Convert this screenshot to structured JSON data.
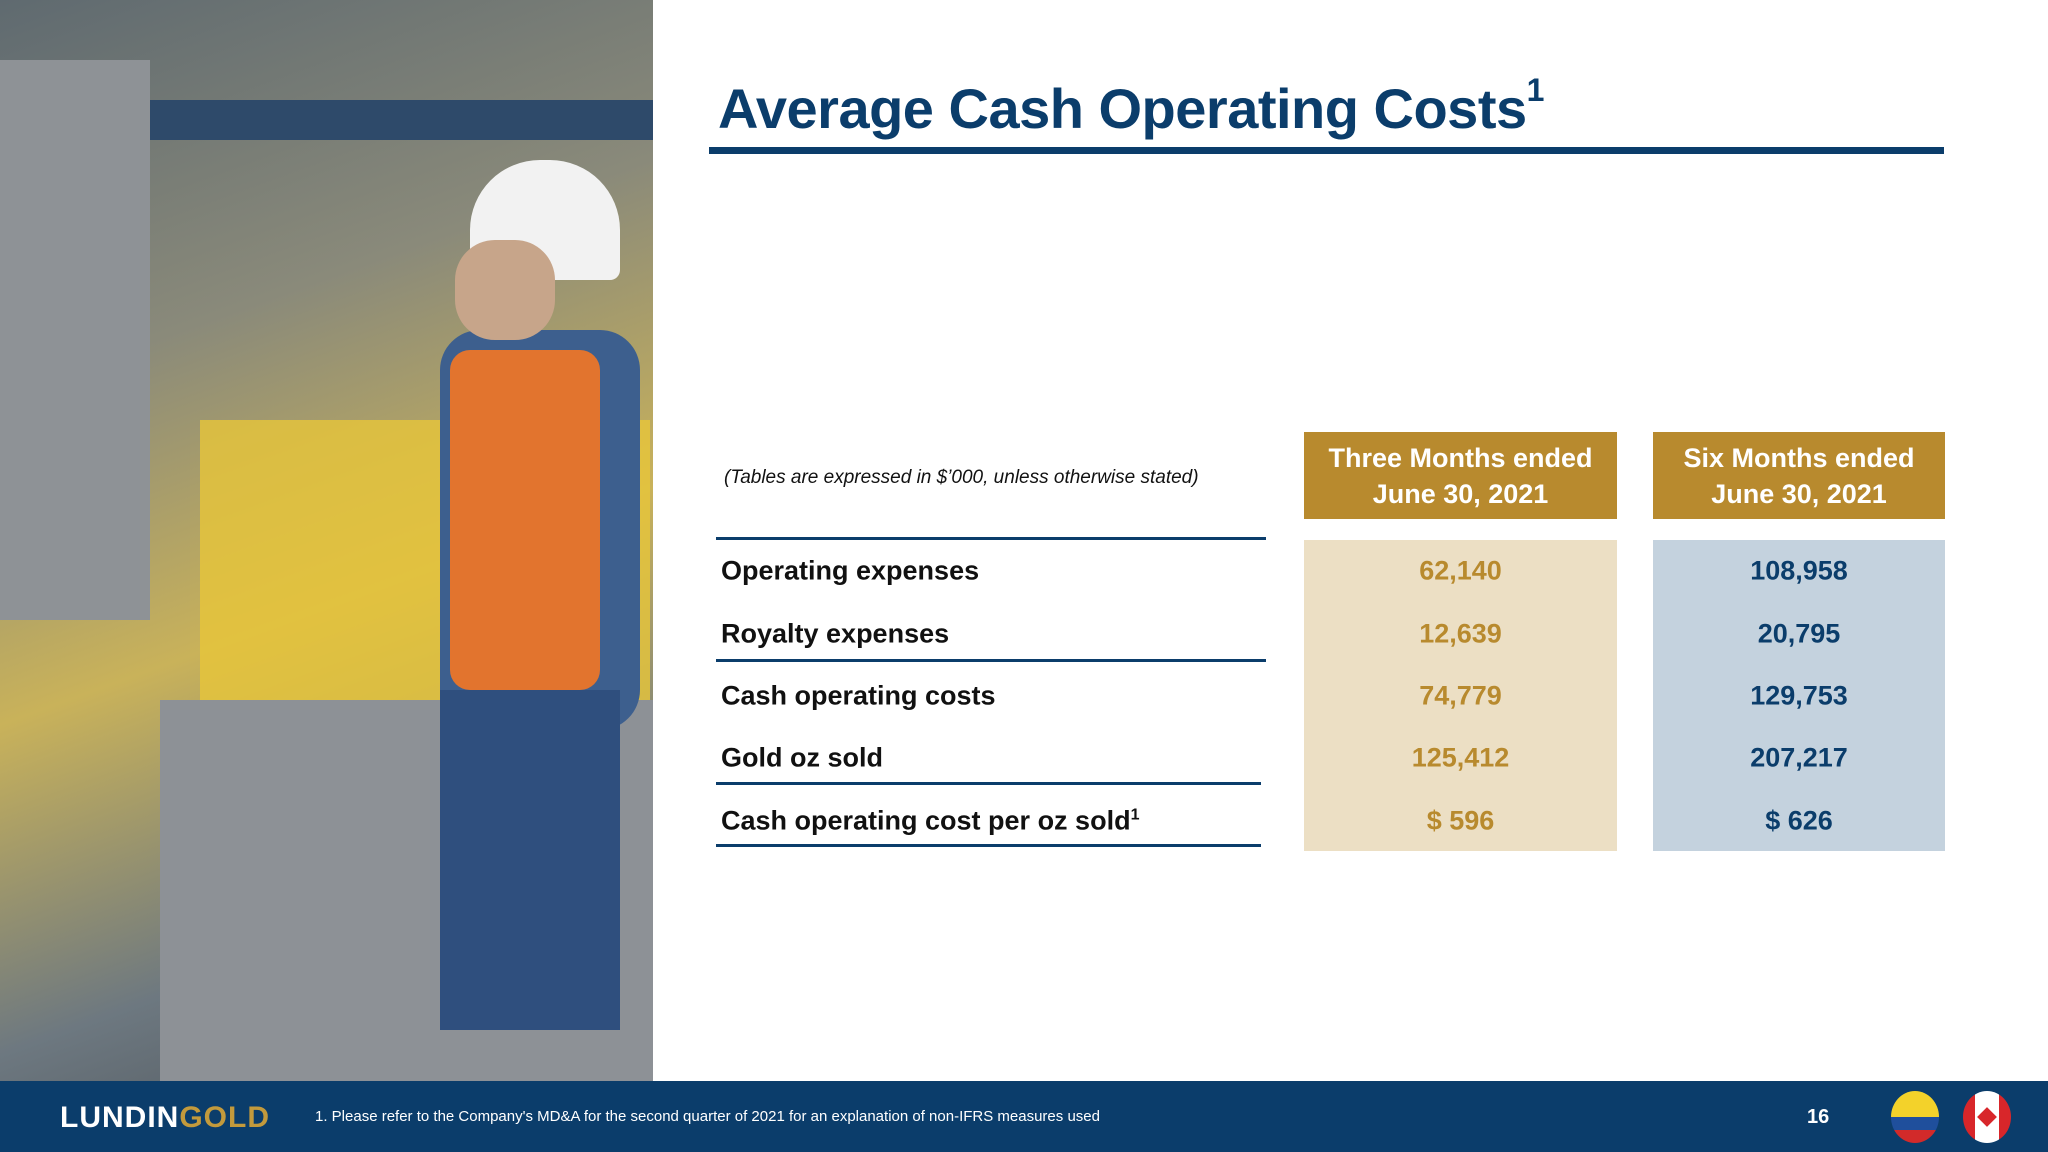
{
  "slide": {
    "title": "Average Cash Operating Costs",
    "title_superscript": "1",
    "note": "(Tables are expressed in $’000, unless otherwise stated)",
    "columns": [
      {
        "line1": "Three Months ended",
        "line2": "June 30, 2021"
      },
      {
        "line1": "Six Months ended",
        "line2": "June 30, 2021"
      }
    ],
    "rows": [
      {
        "label": "Operating expenses",
        "three_months": "62,140",
        "six_months": "108,958"
      },
      {
        "label": "Royalty expenses",
        "three_months": "12,639",
        "six_months": "20,795"
      },
      {
        "label": "Cash operating costs",
        "three_months": "74,779",
        "six_months": "129,753"
      },
      {
        "label": "Gold oz sold",
        "three_months": "125,412",
        "six_months": "207,217"
      },
      {
        "label": "Cash operating cost per oz sold",
        "label_superscript": "1",
        "three_months": "$ 596",
        "six_months": "$ 626"
      }
    ],
    "colors": {
      "navy": "#0b3d6b",
      "gold": "#b88a2e",
      "gold_bg": "#ecdfc4",
      "blue_bg": "#c4d2de"
    }
  },
  "photo": {
    "description_icon": "worker-photo"
  },
  "footer": {
    "logo_part1": "LUNDIN",
    "logo_part2": "GOLD",
    "footnote": "1. Please refer to the Company's MD&A for the second quarter of 2021 for an explanation of non-IFRS measures used",
    "page_number": "16",
    "flags": [
      "ecuador-flag-icon",
      "canada-flag-icon"
    ]
  }
}
